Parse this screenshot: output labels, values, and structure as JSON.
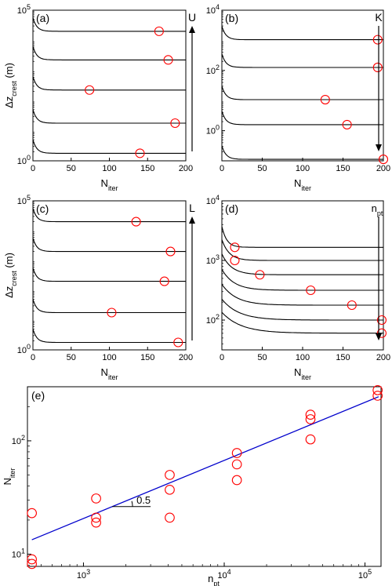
{
  "chart_data": [
    {
      "id": "a",
      "type": "line",
      "panel_label": "(a)",
      "xlabel": {
        "main": "N",
        "sub": "iter"
      },
      "ylabel": {
        "pre": "Δz",
        "sub": "crest",
        "post": " (m)"
      },
      "xlim": [
        0,
        200
      ],
      "ylim_log10": [
        0,
        5
      ],
      "y_scale": "log",
      "xticks": [
        "0",
        "50",
        "100",
        "150",
        "200"
      ],
      "yticks": [
        {
          "base": "10",
          "exp": "0"
        },
        {
          "base": "10",
          "exp": "5"
        }
      ],
      "arrow": {
        "label": "U",
        "direction": "up"
      },
      "curves_log10": [
        4.3,
        3.35,
        2.35,
        1.25,
        0.25
      ],
      "circles": [
        {
          "x": 165,
          "log10y": 4.3
        },
        {
          "x": 177,
          "log10y": 3.35
        },
        {
          "x": 74,
          "log10y": 2.35
        },
        {
          "x": 186,
          "log10y": 1.25
        },
        {
          "x": 140,
          "log10y": 0.25
        }
      ]
    },
    {
      "id": "b",
      "type": "line",
      "panel_label": "(b)",
      "xlabel": {
        "main": "N",
        "sub": "iter"
      },
      "ylabel": null,
      "xlim": [
        0,
        200
      ],
      "ylim_log10": [
        -1,
        4
      ],
      "y_scale": "log",
      "xticks": [
        "0",
        "50",
        "100",
        "150",
        "200"
      ],
      "yticks": [
        {
          "base": "10",
          "exp": "0"
        },
        {
          "base": "10",
          "exp": "2"
        },
        {
          "base": "10",
          "exp": "4"
        }
      ],
      "arrow": {
        "label": "K",
        "direction": "down"
      },
      "curves_log10": [
        3.02,
        2.1,
        1.03,
        0.2,
        -0.95
      ],
      "circles": [
        {
          "x": 193,
          "log10y": 3.02
        },
        {
          "x": 193,
          "log10y": 2.1
        },
        {
          "x": 128,
          "log10y": 1.03
        },
        {
          "x": 155,
          "log10y": 0.2
        },
        {
          "x": 200,
          "log10y": -0.95
        }
      ]
    },
    {
      "id": "c",
      "type": "line",
      "panel_label": "(c)",
      "xlabel": {
        "main": "N",
        "sub": "iter"
      },
      "ylabel": {
        "pre": "Δz",
        "sub": "crest",
        "post": " (m)"
      },
      "xlim": [
        0,
        200
      ],
      "ylim_log10": [
        0,
        5
      ],
      "y_scale": "log",
      "xticks": [
        "0",
        "50",
        "100",
        "150",
        "200"
      ],
      "yticks": [
        {
          "base": "10",
          "exp": "0"
        },
        {
          "base": "10",
          "exp": "5"
        }
      ],
      "arrow": {
        "label": "L",
        "direction": "up"
      },
      "curves_log10": [
        4.3,
        3.3,
        2.3,
        1.25,
        0.25
      ],
      "circles": [
        {
          "x": 135,
          "log10y": 4.3
        },
        {
          "x": 180,
          "log10y": 3.3
        },
        {
          "x": 172,
          "log10y": 2.3
        },
        {
          "x": 103,
          "log10y": 1.25
        },
        {
          "x": 190,
          "log10y": 0.25
        }
      ]
    },
    {
      "id": "d",
      "type": "line",
      "panel_label": "(d)",
      "xlabel": {
        "main": "N",
        "sub": "iter"
      },
      "ylabel": null,
      "xlim": [
        0,
        200
      ],
      "ylim_log10": [
        1.5,
        4
      ],
      "y_scale": "log",
      "xticks": [
        "0",
        "50",
        "100",
        "150",
        "200"
      ],
      "yticks": [
        {
          "base": "10",
          "exp": "2"
        },
        {
          "base": "10",
          "exp": "3"
        },
        {
          "base": "10",
          "exp": "4"
        }
      ],
      "arrow": {
        "label": {
          "main": "n",
          "sub": "pt"
        },
        "direction": "down"
      },
      "curves_log10": [
        3.22,
        3.0,
        2.76,
        2.5,
        2.25,
        2.0,
        1.78
      ],
      "circles": [
        {
          "x": 16,
          "log10y": 3.22
        },
        {
          "x": 16,
          "log10y": 3.0
        },
        {
          "x": 47,
          "log10y": 2.76
        },
        {
          "x": 110,
          "log10y": 2.5
        },
        {
          "x": 161,
          "log10y": 2.25
        },
        {
          "x": 198,
          "log10y": 2.0
        },
        {
          "x": 198,
          "log10y": 1.78
        }
      ]
    },
    {
      "id": "e",
      "type": "scatter",
      "panel_label": "(e)",
      "x_scale": "log",
      "y_scale": "log",
      "xlabel": {
        "main": "n",
        "sub": "pt"
      },
      "ylabel": {
        "main": "N",
        "sub": "iter"
      },
      "xlim": [
        400,
        130000
      ],
      "ylim": [
        7.8,
        300
      ],
      "xticks": [
        {
          "base": "10",
          "exp": "3"
        },
        {
          "base": "10",
          "exp": "4"
        },
        {
          "base": "10",
          "exp": "5"
        }
      ],
      "yticks": [
        {
          "base": "10",
          "exp": "1"
        },
        {
          "base": "10",
          "exp": "2"
        }
      ],
      "points": [
        {
          "x": 430,
          "y": 23
        },
        {
          "x": 430,
          "y": 9
        },
        {
          "x": 430,
          "y": 8.2
        },
        {
          "x": 1230,
          "y": 31
        },
        {
          "x": 1230,
          "y": 21
        },
        {
          "x": 1230,
          "y": 19
        },
        {
          "x": 4100,
          "y": 50
        },
        {
          "x": 4100,
          "y": 37
        },
        {
          "x": 4100,
          "y": 21
        },
        {
          "x": 12300,
          "y": 78
        },
        {
          "x": 12300,
          "y": 62
        },
        {
          "x": 12300,
          "y": 45
        },
        {
          "x": 41000,
          "y": 170
        },
        {
          "x": 41000,
          "y": 155
        },
        {
          "x": 41000,
          "y": 103
        },
        {
          "x": 123000,
          "y": 280
        },
        {
          "x": 123000,
          "y": 250
        }
      ],
      "fit_line": {
        "x": [
          430,
          125000
        ],
        "y": [
          13.4,
          245
        ],
        "color": "#0000cc"
      },
      "slope_annotation": "0.5",
      "marker_color": "#ff0000"
    }
  ]
}
